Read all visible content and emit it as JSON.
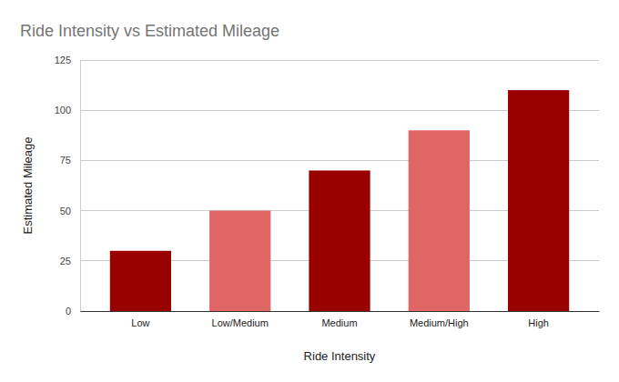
{
  "chart_data": {
    "type": "bar",
    "title": "Ride Intensity vs Estimated Mileage",
    "x_label": "Ride Intensity",
    "y_label": "Estimated Mileage",
    "categories": [
      "Low",
      "Low/Medium",
      "Medium",
      "Medium/High",
      "High"
    ],
    "values": [
      30,
      50,
      70,
      90,
      110
    ],
    "colors": [
      "#990000",
      "#e06666",
      "#990000",
      "#e06666",
      "#990000"
    ],
    "ylim": [
      0,
      125
    ],
    "yticks": [
      0,
      25,
      50,
      75,
      100,
      125
    ],
    "grid": true
  }
}
